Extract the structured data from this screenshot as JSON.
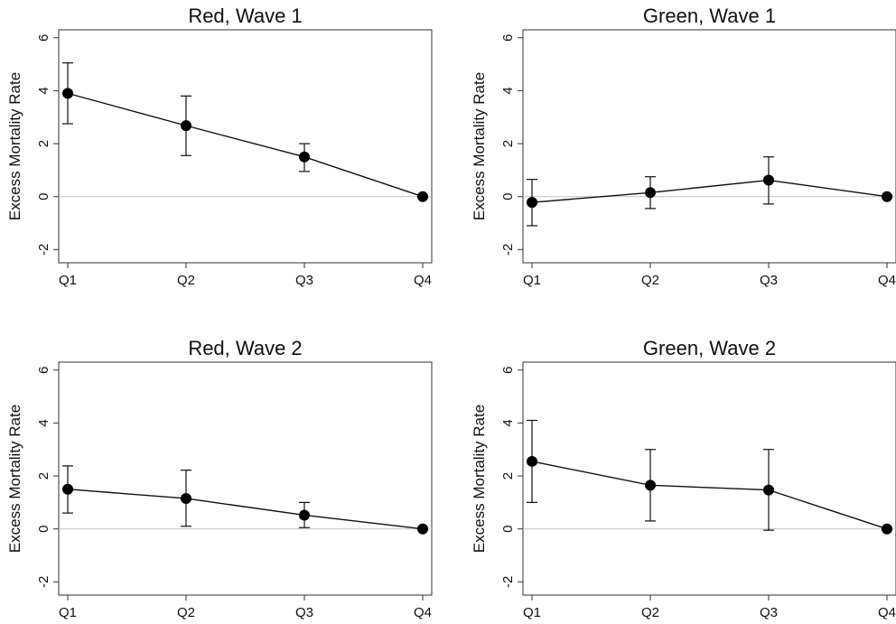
{
  "chart_data": [
    {
      "type": "line",
      "title": "Red, Wave 1",
      "xlabel": "",
      "ylabel": "Excess Mortality Rate",
      "categories": [
        "Q1",
        "Q2",
        "Q3",
        "Q4"
      ],
      "yticks": [
        "-2",
        "0",
        "2",
        "4",
        "6"
      ],
      "ylim": [
        -2.5,
        6.3
      ],
      "values": [
        3.9,
        2.68,
        1.5,
        0
      ],
      "ci_low": [
        2.75,
        1.55,
        0.95,
        0
      ],
      "ci_high": [
        5.05,
        3.8,
        2.0,
        0
      ],
      "reference_line": 0,
      "grid": false
    },
    {
      "type": "line",
      "title": "Green, Wave 1",
      "xlabel": "",
      "ylabel": "Excess Mortality Rate",
      "categories": [
        "Q1",
        "Q2",
        "Q3",
        "Q4"
      ],
      "yticks": [
        "-2",
        "0",
        "2",
        "4",
        "6"
      ],
      "ylim": [
        -2.5,
        6.3
      ],
      "values": [
        -0.22,
        0.15,
        0.62,
        0
      ],
      "ci_low": [
        -1.1,
        -0.45,
        -0.28,
        0
      ],
      "ci_high": [
        0.65,
        0.75,
        1.5,
        0
      ],
      "reference_line": 0,
      "grid": false
    },
    {
      "type": "line",
      "title": "Red, Wave 2",
      "xlabel": "",
      "ylabel": "Excess Mortality Rate",
      "categories": [
        "Q1",
        "Q2",
        "Q3",
        "Q4"
      ],
      "yticks": [
        "-2",
        "0",
        "2",
        "4",
        "6"
      ],
      "ylim": [
        -2.5,
        6.3
      ],
      "values": [
        1.5,
        1.15,
        0.52,
        0
      ],
      "ci_low": [
        0.6,
        0.1,
        0.05,
        0
      ],
      "ci_high": [
        2.38,
        2.22,
        1.0,
        0
      ],
      "reference_line": 0,
      "grid": false
    },
    {
      "type": "line",
      "title": "Green, Wave 2",
      "xlabel": "",
      "ylabel": "Excess Mortality Rate",
      "categories": [
        "Q1",
        "Q2",
        "Q3",
        "Q4"
      ],
      "yticks": [
        "-2",
        "0",
        "2",
        "4",
        "6"
      ],
      "ylim": [
        -2.5,
        6.3
      ],
      "values": [
        2.55,
        1.65,
        1.47,
        0
      ],
      "ci_low": [
        1.0,
        0.3,
        -0.05,
        0
      ],
      "ci_high": [
        4.1,
        3.0,
        3.0,
        0
      ],
      "reference_line": 0,
      "grid": false
    }
  ]
}
